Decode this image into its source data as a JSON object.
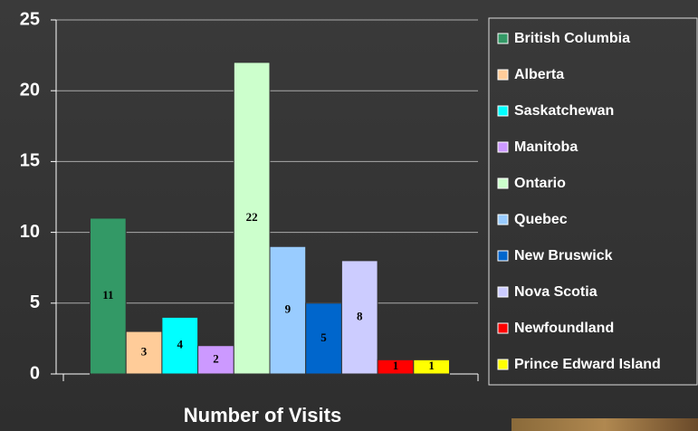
{
  "chart_data": {
    "type": "bar",
    "x_label": "Number of Visits",
    "ylim": [
      0,
      25
    ],
    "yticks": [
      0,
      5,
      10,
      15,
      20,
      25
    ],
    "grid": true,
    "data_labels": true,
    "legend": "right",
    "series": [
      {
        "name": "British Columbia",
        "color": "#339966",
        "values": [
          11
        ]
      },
      {
        "name": "Alberta",
        "color": "#ffcc99",
        "values": [
          3
        ]
      },
      {
        "name": "Saskatchewan",
        "color": "#00ffff",
        "values": [
          4
        ]
      },
      {
        "name": "Manitoba",
        "color": "#cc99ff",
        "values": [
          2
        ]
      },
      {
        "name": "Ontario",
        "color": "#ccffcc",
        "values": [
          22
        ]
      },
      {
        "name": "Quebec",
        "color": "#99ccff",
        "values": [
          9
        ]
      },
      {
        "name": "New Bruswick",
        "color": "#0066cc",
        "values": [
          5
        ]
      },
      {
        "name": "Nova Scotia",
        "color": "#ccccff",
        "values": [
          8
        ]
      },
      {
        "name": "Newfoundland",
        "color": "#ff0000",
        "values": [
          1
        ]
      },
      {
        "name": "Prince Edward Island",
        "color": "#ffff00",
        "values": [
          1
        ]
      }
    ]
  }
}
